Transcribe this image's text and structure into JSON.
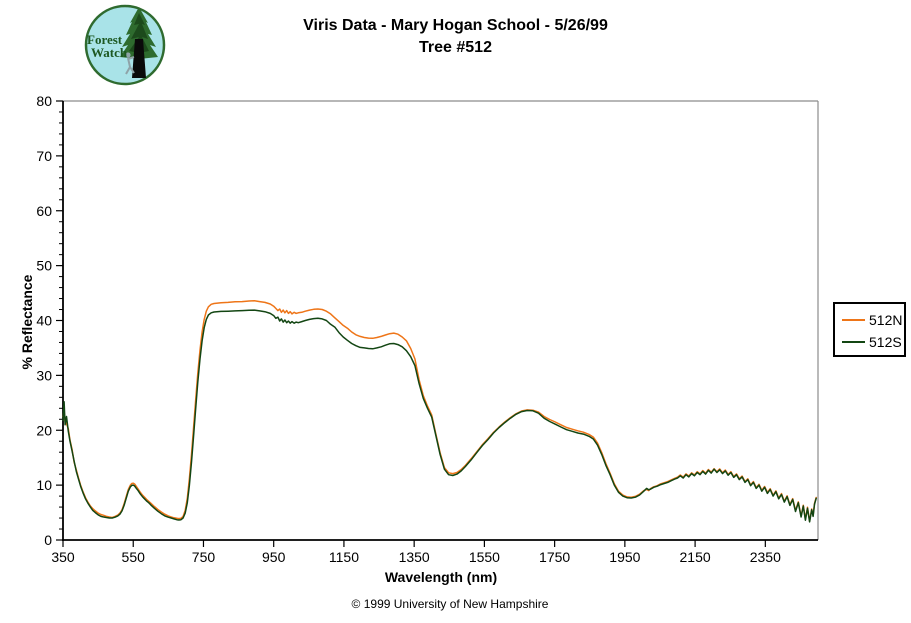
{
  "title": {
    "line1": "Viris Data - Mary Hogan School - 5/26/99",
    "line2": "Tree #512"
  },
  "logo": {
    "line1": "Forest",
    "line2": "Watch"
  },
  "footer": {
    "copyright": "© 1999 University of New Hampshire"
  },
  "colors": {
    "series_512n": "#EE7518",
    "series_512s": "#134613",
    "axis": "#000000",
    "plot_frame": "#8C8C8C",
    "logo_bg": "#A9E3E8",
    "logo_ring": "#2F6B2F",
    "logo_foliage": "#2E6B2E",
    "logo_foliage_dark": "#1C4A1C",
    "logo_trunk": "#0A0A0A",
    "logo_text": "#1C5720",
    "climber": "#8FA3A8"
  },
  "chart_data": {
    "type": "line",
    "title": "Viris Data - Mary Hogan School - 5/26/99 — Tree #512",
    "xlabel": "Wavelength (nm)",
    "ylabel": "% Reflectance",
    "xlim": [
      350,
      2500
    ],
    "ylim": [
      0,
      80
    ],
    "x_ticks": [
      350,
      550,
      750,
      950,
      1150,
      1350,
      1550,
      1750,
      1950,
      2150,
      2350
    ],
    "y_ticks": [
      0,
      10,
      20,
      30,
      40,
      50,
      60,
      70,
      80
    ],
    "y_minor_step": 2,
    "grid": false,
    "legend_position": "right",
    "wavelengths": [
      350,
      353,
      356,
      360,
      365,
      370,
      376,
      382,
      388,
      394,
      400,
      407,
      414,
      421,
      428,
      435,
      442,
      450,
      458,
      466,
      474,
      482,
      490,
      498,
      506,
      512,
      518,
      524,
      530,
      536,
      542,
      546,
      550,
      554,
      558,
      564,
      570,
      576,
      582,
      588,
      594,
      600,
      610,
      620,
      630,
      640,
      650,
      658,
      666,
      674,
      680,
      686,
      692,
      698,
      704,
      710,
      716,
      722,
      728,
      734,
      740,
      746,
      752,
      758,
      764,
      772,
      780,
      800,
      820,
      840,
      860,
      880,
      895,
      910,
      925,
      940,
      950,
      956,
      962,
      967,
      972,
      977,
      982,
      987,
      992,
      997,
      1002,
      1008,
      1014,
      1020,
      1030,
      1040,
      1052,
      1064,
      1076,
      1088,
      1100,
      1112,
      1124,
      1136,
      1148,
      1160,
      1172,
      1184,
      1196,
      1208,
      1220,
      1232,
      1244,
      1256,
      1268,
      1280,
      1292,
      1304,
      1316,
      1328,
      1340,
      1352,
      1364,
      1376,
      1388,
      1400,
      1412,
      1424,
      1436,
      1448,
      1460,
      1472,
      1484,
      1496,
      1512,
      1528,
      1544,
      1560,
      1576,
      1592,
      1608,
      1624,
      1640,
      1656,
      1672,
      1688,
      1704,
      1720,
      1736,
      1752,
      1768,
      1784,
      1800,
      1816,
      1832,
      1848,
      1860,
      1872,
      1884,
      1896,
      1908,
      1920,
      1932,
      1944,
      1956,
      1968,
      1980,
      1992,
      2004,
      2012,
      2018,
      2024,
      2032,
      2042,
      2052,
      2062,
      2072,
      2082,
      2092,
      2100,
      2108,
      2116,
      2124,
      2132,
      2140,
      2148,
      2156,
      2164,
      2172,
      2180,
      2188,
      2196,
      2204,
      2212,
      2220,
      2228,
      2236,
      2244,
      2252,
      2260,
      2268,
      2276,
      2284,
      2292,
      2300,
      2308,
      2316,
      2324,
      2332,
      2340,
      2348,
      2356,
      2364,
      2372,
      2380,
      2388,
      2396,
      2404,
      2412,
      2420,
      2428,
      2436,
      2444,
      2452,
      2458,
      2464,
      2470,
      2476,
      2482,
      2486,
      2490,
      2495
    ],
    "series": [
      {
        "name": "512N",
        "color": "#EE7518",
        "values": [
          22.5,
          23.5,
          21.6,
          21.2,
          20.3,
          18.2,
          16.5,
          14.1,
          12.8,
          11.3,
          10.0,
          8.8,
          7.7,
          6.9,
          6.2,
          5.7,
          5.3,
          4.9,
          4.65,
          4.5,
          4.3,
          4.2,
          4.1,
          4.3,
          4.55,
          4.9,
          5.5,
          6.6,
          7.9,
          9.2,
          10.0,
          10.3,
          10.35,
          10.2,
          9.85,
          9.3,
          8.7,
          8.2,
          7.8,
          7.4,
          7.05,
          6.7,
          6.1,
          5.55,
          5.1,
          4.7,
          4.4,
          4.2,
          4.05,
          3.95,
          3.9,
          3.95,
          4.3,
          5.4,
          7.6,
          11.2,
          15.6,
          20.6,
          25.6,
          30.4,
          34.6,
          37.9,
          40.2,
          41.7,
          42.5,
          42.95,
          43.1,
          43.25,
          43.3,
          43.4,
          43.45,
          43.55,
          43.6,
          43.45,
          43.3,
          43.0,
          42.6,
          42.2,
          41.8,
          42.1,
          41.5,
          41.9,
          41.4,
          41.8,
          41.3,
          41.6,
          41.2,
          41.5,
          41.3,
          41.4,
          41.5,
          41.7,
          41.9,
          42.05,
          42.1,
          42.0,
          41.7,
          41.2,
          40.5,
          39.8,
          39.1,
          38.6,
          37.9,
          37.4,
          37.1,
          36.9,
          36.8,
          36.75,
          36.9,
          37.1,
          37.35,
          37.6,
          37.7,
          37.5,
          37.0,
          36.3,
          34.9,
          33.0,
          29.2,
          26.3,
          24.4,
          22.8,
          19.3,
          15.9,
          13.2,
          12.25,
          12.1,
          12.3,
          12.85,
          13.6,
          14.8,
          16.05,
          17.35,
          18.45,
          19.6,
          20.6,
          21.5,
          22.3,
          23.0,
          23.5,
          23.7,
          23.65,
          23.3,
          22.5,
          21.95,
          21.5,
          21.0,
          20.5,
          20.2,
          19.9,
          19.65,
          19.25,
          18.75,
          17.65,
          15.95,
          13.9,
          12.15,
          10.25,
          8.9,
          8.2,
          7.85,
          7.8,
          7.95,
          8.35,
          9.0,
          9.2,
          9.0,
          9.4,
          9.7,
          9.9,
          10.25,
          10.45,
          10.65,
          10.95,
          11.25,
          11.45,
          11.85,
          11.45,
          12.05,
          11.65,
          12.25,
          11.85,
          12.45,
          12.05,
          12.65,
          12.15,
          12.85,
          12.35,
          13.0,
          12.45,
          12.95,
          12.25,
          12.75,
          11.95,
          12.45,
          11.55,
          12.05,
          11.15,
          11.65,
          10.65,
          11.15,
          10.05,
          10.65,
          9.55,
          10.15,
          9.05,
          9.75,
          8.65,
          9.35,
          8.15,
          8.95,
          7.65,
          8.45,
          7.05,
          8.05,
          6.45,
          7.55,
          5.35,
          6.95,
          4.35,
          6.35,
          3.75,
          5.95,
          3.45,
          5.65,
          4.45,
          6.65,
          7.75
        ]
      },
      {
        "name": "512S",
        "color": "#134613",
        "values": [
          21.8,
          25.2,
          21.0,
          22.5,
          19.8,
          18.0,
          16.2,
          14.3,
          12.5,
          11.1,
          9.8,
          8.6,
          7.5,
          6.7,
          6.0,
          5.4,
          5.0,
          4.6,
          4.3,
          4.2,
          4.1,
          4.0,
          4.0,
          4.15,
          4.4,
          4.7,
          5.3,
          6.3,
          7.6,
          8.9,
          9.7,
          9.95,
          10.0,
          9.85,
          9.5,
          9.0,
          8.4,
          7.9,
          7.5,
          7.1,
          6.8,
          6.4,
          5.8,
          5.25,
          4.8,
          4.4,
          4.15,
          4.0,
          3.85,
          3.7,
          3.65,
          3.7,
          4.0,
          4.9,
          6.8,
          10.0,
          14.2,
          19.0,
          24.0,
          28.8,
          33.0,
          36.3,
          38.7,
          40.2,
          41.0,
          41.4,
          41.55,
          41.65,
          41.7,
          41.75,
          41.8,
          41.85,
          41.9,
          41.75,
          41.6,
          41.3,
          40.9,
          40.4,
          40.6,
          39.9,
          40.3,
          39.7,
          40.1,
          39.6,
          39.9,
          39.5,
          39.8,
          39.5,
          39.7,
          39.6,
          39.8,
          40.0,
          40.2,
          40.35,
          40.4,
          40.3,
          40.0,
          39.3,
          38.8,
          37.8,
          37.0,
          36.4,
          35.8,
          35.4,
          35.1,
          35.0,
          34.9,
          34.85,
          35.0,
          35.2,
          35.5,
          35.75,
          35.8,
          35.6,
          35.2,
          34.5,
          33.4,
          31.8,
          28.5,
          25.8,
          24.0,
          22.4,
          19.0,
          15.6,
          12.9,
          11.9,
          11.75,
          12.0,
          12.6,
          13.4,
          14.6,
          15.9,
          17.2,
          18.3,
          19.5,
          20.5,
          21.4,
          22.2,
          22.9,
          23.4,
          23.6,
          23.55,
          23.1,
          22.2,
          21.6,
          21.1,
          20.6,
          20.1,
          19.8,
          19.5,
          19.3,
          18.9,
          18.4,
          17.3,
          15.6,
          13.6,
          11.9,
          10.0,
          8.7,
          8.0,
          7.7,
          7.65,
          7.8,
          8.2,
          8.9,
          9.4,
          9.15,
          9.3,
          9.6,
          9.8,
          10.1,
          10.3,
          10.5,
          10.8,
          11.1,
          11.3,
          11.7,
          11.3,
          11.9,
          11.5,
          12.1,
          11.7,
          12.3,
          11.9,
          12.5,
          12.0,
          12.7,
          12.2,
          12.9,
          12.3,
          12.8,
          12.1,
          12.6,
          11.8,
          12.3,
          11.4,
          11.9,
          11.0,
          11.5,
          10.5,
          11.0,
          9.9,
          10.5,
          9.4,
          10.0,
          8.9,
          9.6,
          8.5,
          9.2,
          8.0,
          8.8,
          7.5,
          8.3,
          6.9,
          7.9,
          6.3,
          7.4,
          5.2,
          6.8,
          4.2,
          6.2,
          3.6,
          5.8,
          3.3,
          5.5,
          4.3,
          6.5,
          7.6
        ]
      }
    ]
  }
}
